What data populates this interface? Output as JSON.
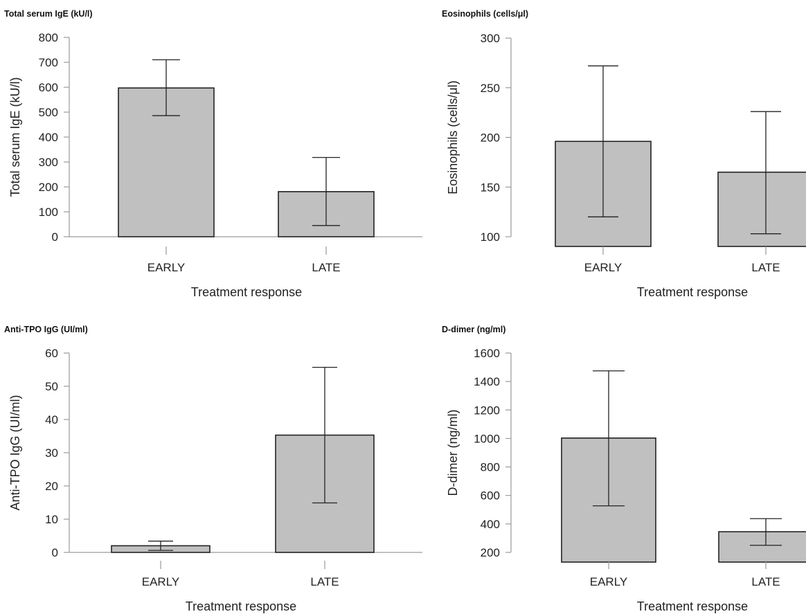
{
  "chart_data": [
    {
      "type": "bar",
      "title": "Total serum IgE (kU/l)",
      "ylabel": "Total serum IgE  (kU/l)",
      "xlabel": "Treatment response",
      "categories": [
        "EARLY",
        "LATE"
      ],
      "values": [
        597,
        181
      ],
      "error_low": [
        486,
        45
      ],
      "error_high": [
        710,
        318
      ],
      "ylim": [
        0,
        800
      ],
      "yticks": [
        0,
        100,
        200,
        300,
        400,
        500,
        600,
        700,
        800
      ],
      "grid": false
    },
    {
      "type": "bar",
      "title": "Eosinophils (cells/μl)",
      "ylabel": "Eosinophils (cells/μl)",
      "xlabel": "Treatment response",
      "categories": [
        "EARLY",
        "LATE"
      ],
      "values": [
        196,
        165
      ],
      "error_low": [
        120,
        103
      ],
      "error_high": [
        272,
        226
      ],
      "ylim": [
        100,
        300
      ],
      "yticks": [
        100,
        150,
        200,
        250,
        300
      ],
      "grid": false
    },
    {
      "type": "bar",
      "title": "Anti-TPO IgG (UI/ml)",
      "ylabel": "Anti-TPO IgG (UI/ml)",
      "xlabel": "Treatment response",
      "categories": [
        "EARLY",
        "LATE"
      ],
      "values": [
        2,
        35.3
      ],
      "error_low": [
        0.6,
        14.9
      ],
      "error_high": [
        3.4,
        55.7
      ],
      "ylim": [
        0,
        60
      ],
      "yticks": [
        0,
        10,
        20,
        30,
        40,
        50,
        60
      ],
      "grid": false
    },
    {
      "type": "bar",
      "title": "D-dimer (ng/ml)",
      "ylabel": "D-dimer (ng/ml)",
      "xlabel": "Treatment response",
      "categories": [
        "EARLY",
        "LATE"
      ],
      "values": [
        1003,
        345
      ],
      "error_low": [
        527,
        250
      ],
      "error_high": [
        1475,
        437
      ],
      "ylim": [
        200,
        1600
      ],
      "yticks": [
        200,
        400,
        600,
        800,
        1000,
        1200,
        1400,
        1600
      ],
      "grid": false
    }
  ]
}
